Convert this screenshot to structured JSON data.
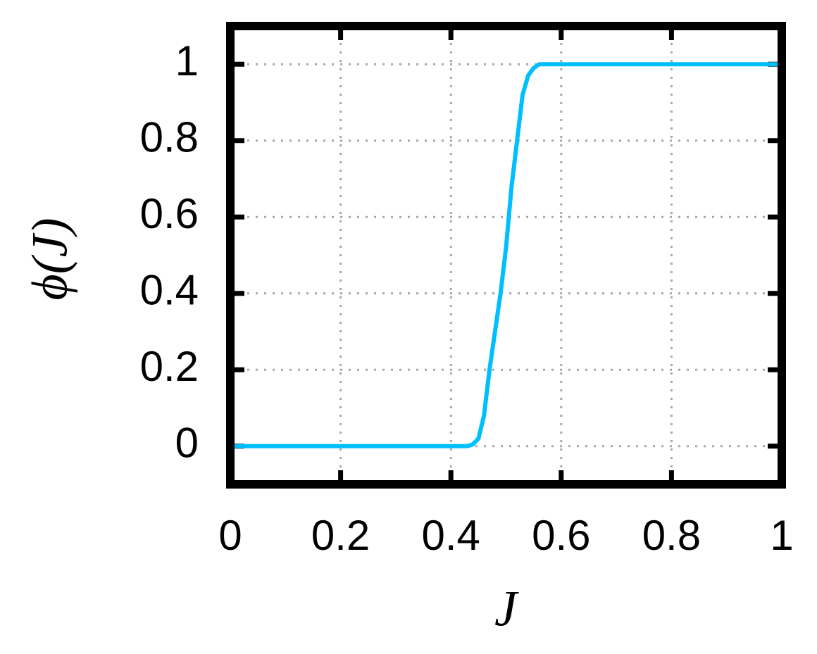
{
  "chart_data": {
    "type": "line",
    "x_label": "J",
    "y_label": "ϕ(J)",
    "x": [
      0,
      0.42,
      0.43,
      0.44,
      0.45,
      0.46,
      0.47,
      0.48,
      0.49,
      0.5,
      0.51,
      0.52,
      0.53,
      0.54,
      0.55,
      0.56,
      0.58,
      1
    ],
    "series": [
      {
        "color": "#00bfff",
        "values": [
          0,
          0,
          0,
          0.005,
          0.02,
          0.08,
          0.2,
          0.3,
          0.4,
          0.52,
          0.68,
          0.8,
          0.92,
          0.97,
          0.99,
          1,
          1,
          1
        ]
      }
    ],
    "xlim": [
      0,
      1
    ],
    "xticks": [
      0,
      0.2,
      0.4,
      0.6,
      0.8,
      1
    ],
    "ylim": [
      -0.1,
      1.1
    ],
    "yticks": [
      0,
      0.2,
      0.4,
      0.6,
      0.8,
      1
    ],
    "grid": true
  }
}
